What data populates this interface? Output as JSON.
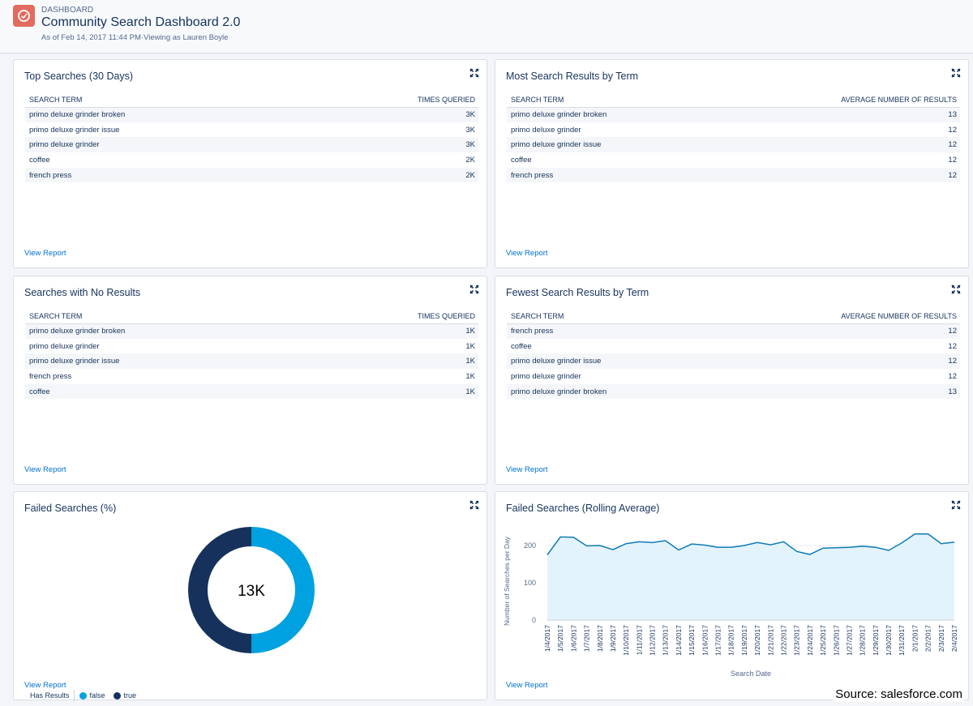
{
  "header": {
    "label": "DASHBOARD",
    "title": "Community Search Dashboard 2.0",
    "subtitle": "As of Feb 14, 2017 11:44 PM·Viewing as Lauren Boyle"
  },
  "cards": {
    "top_searches": {
      "title": "Top Searches (30 Days)",
      "col1": "SEARCH TERM",
      "col2": "TIMES QUERIED",
      "rows": [
        [
          "primo deluxe grinder broken",
          "3K"
        ],
        [
          "primo deluxe grinder issue",
          "3K"
        ],
        [
          "primo deluxe grinder",
          "3K"
        ],
        [
          "coffee",
          "2K"
        ],
        [
          "french press",
          "2K"
        ]
      ],
      "link": "View Report"
    },
    "most_results": {
      "title": "Most Search Results by Term",
      "col1": "SEARCH TERM",
      "col2": "AVERAGE NUMBER OF RESULTS",
      "rows": [
        [
          "primo deluxe grinder broken",
          "13"
        ],
        [
          "primo deluxe grinder",
          "12"
        ],
        [
          "primo deluxe grinder issue",
          "12"
        ],
        [
          "coffee",
          "12"
        ],
        [
          "french press",
          "12"
        ]
      ],
      "link": "View Report"
    },
    "no_results": {
      "title": "Searches with No Results",
      "col1": "SEARCH TERM",
      "col2": "TIMES QUERIED",
      "rows": [
        [
          "primo deluxe grinder broken",
          "1K"
        ],
        [
          "primo deluxe grinder",
          "1K"
        ],
        [
          "primo deluxe grinder issue",
          "1K"
        ],
        [
          "french press",
          "1K"
        ],
        [
          "coffee",
          "1K"
        ]
      ],
      "link": "View Report"
    },
    "fewest_results": {
      "title": "Fewest Search Results by Term",
      "col1": "SEARCH TERM",
      "col2": "AVERAGE NUMBER OF RESULTS",
      "rows": [
        [
          "french press",
          "12"
        ],
        [
          "coffee",
          "12"
        ],
        [
          "primo deluxe grinder issue",
          "12"
        ],
        [
          "primo deluxe grinder",
          "12"
        ],
        [
          "primo deluxe grinder broken",
          "13"
        ]
      ],
      "link": "View Report"
    },
    "failed_pct": {
      "title": "Failed Searches (%)",
      "link": "View Report"
    },
    "failed_avg": {
      "title": "Failed Searches (Rolling Average)",
      "link": "View Report"
    }
  },
  "colors": {
    "false": "#00a1e0",
    "true": "#16325c",
    "area": "#e3f3fb",
    "line": "#0e7bb5"
  },
  "chart_data": [
    {
      "type": "donut",
      "title": "Failed Searches (%)",
      "center_label": "13K",
      "legend_title": "Has Results",
      "categories": [
        "false",
        "true"
      ],
      "values": [
        50,
        50
      ],
      "legend_placement": "bottom-left"
    },
    {
      "type": "area",
      "title": "Failed Searches (Rolling Average)",
      "xlabel": "Search Date",
      "ylabel": "Number of Searches per Day",
      "ylim": [
        0,
        250
      ],
      "yticks": [
        "0",
        "100",
        "200"
      ],
      "x": [
        "1/4/2017",
        "1/5/2017",
        "1/6/2017",
        "1/7/2017",
        "1/8/2017",
        "1/9/2017",
        "1/10/2017",
        "1/11/2017",
        "1/12/2017",
        "1/13/2017",
        "1/14/2017",
        "1/15/2017",
        "1/16/2017",
        "1/17/2017",
        "1/18/2017",
        "1/19/2017",
        "1/20/2017",
        "1/21/2017",
        "1/22/2017",
        "1/23/2017",
        "1/24/2017",
        "1/25/2017",
        "1/26/2017",
        "1/27/2017",
        "1/28/2017",
        "1/29/2017",
        "1/30/2017",
        "1/31/2017",
        "2/1/2017",
        "2/2/2017",
        "2/3/2017",
        "2/4/2017"
      ],
      "values": [
        175,
        223,
        222,
        199,
        200,
        189,
        205,
        210,
        208,
        213,
        188,
        204,
        201,
        195,
        195,
        200,
        208,
        202,
        210,
        184,
        176,
        193,
        194,
        195,
        198,
        195,
        187,
        207,
        231,
        231,
        205,
        209
      ],
      "grid": true
    }
  ],
  "source": "Source: salesforce.com"
}
